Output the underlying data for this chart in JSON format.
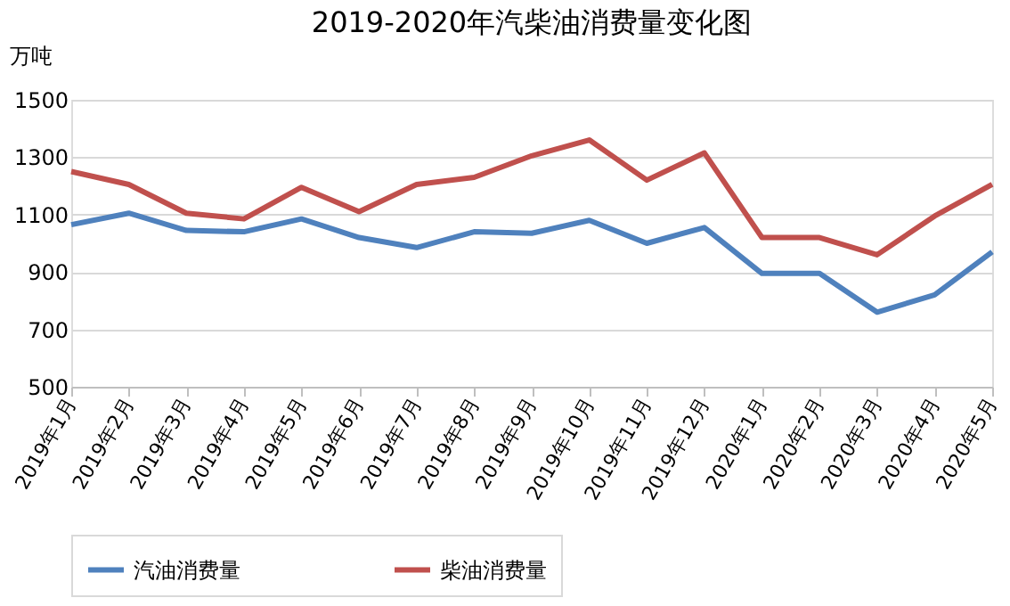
{
  "chart_data": {
    "type": "line",
    "title": "2019-2020年汽柴油消费量变化图",
    "ylabel": "万吨",
    "categories": [
      "2019年1月",
      "2019年2月",
      "2019年3月",
      "2019年4月",
      "2019年5月",
      "2019年6月",
      "2019年7月",
      "2019年8月",
      "2019年9月",
      "2019年10月",
      "2019年11月",
      "2019年12月",
      "2020年1月",
      "2020年2月",
      "2020年3月",
      "2020年4月",
      "2020年5月"
    ],
    "series": [
      {
        "name": "汽油消费量",
        "color": "#4f81bd",
        "values": [
          1065,
          1105,
          1045,
          1040,
          1085,
          1020,
          985,
          1040,
          1035,
          1080,
          1000,
          1055,
          895,
          895,
          760,
          820,
          970
        ]
      },
      {
        "name": "柴油消费量",
        "color": "#c0504d",
        "values": [
          1250,
          1205,
          1105,
          1085,
          1195,
          1110,
          1205,
          1230,
          1305,
          1360,
          1220,
          1315,
          1020,
          1020,
          960,
          1095,
          1205
        ]
      }
    ],
    "ylim": [
      500,
      1500
    ],
    "yticks": [
      500,
      700,
      900,
      1100,
      1300,
      1500
    ],
    "grid": "y",
    "legend": "bottom",
    "marker": "none",
    "line_style": "solid"
  }
}
